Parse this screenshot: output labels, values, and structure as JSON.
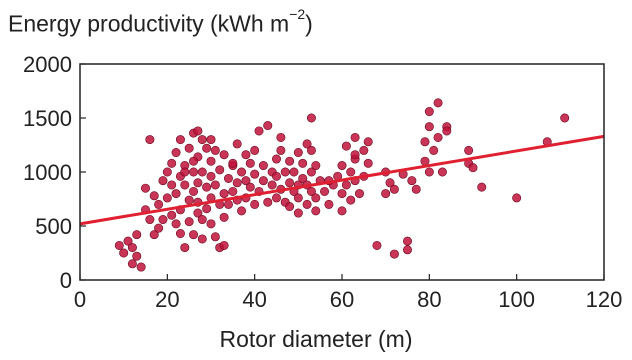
{
  "chart_data": {
    "type": "scatter",
    "title": "",
    "ylabel": {
      "text": "Energy productivity (kWh m",
      "sup": "−2",
      "close": ")"
    },
    "xlabel": "Rotor diameter (m)",
    "xlim": [
      0,
      120
    ],
    "ylim": [
      0,
      2000
    ],
    "xticks": [
      0,
      20,
      40,
      60,
      80,
      100,
      120
    ],
    "yticks": [
      0,
      500,
      1000,
      1500,
      2000
    ],
    "grid": false,
    "point_color": "#c0123a",
    "line_color": "#e02030",
    "trendline": {
      "x": [
        0,
        120
      ],
      "y": [
        520,
        1330
      ]
    },
    "series": [
      {
        "points": [
          [
            9,
            320
          ],
          [
            10,
            250
          ],
          [
            11,
            360
          ],
          [
            12,
            150
          ],
          [
            12,
            300
          ],
          [
            13,
            420
          ],
          [
            14,
            120
          ],
          [
            13,
            220
          ],
          [
            15,
            650
          ],
          [
            15,
            850
          ],
          [
            16,
            1300
          ],
          [
            16,
            560
          ],
          [
            17,
            420
          ],
          [
            17,
            780
          ],
          [
            18,
            700
          ],
          [
            18,
            480
          ],
          [
            19,
            920
          ],
          [
            19,
            560
          ],
          [
            20,
            1000
          ],
          [
            20,
            760
          ],
          [
            21,
            600
          ],
          [
            21,
            1080
          ],
          [
            21,
            880
          ],
          [
            22,
            520
          ],
          [
            22,
            800
          ],
          [
            22,
            1180
          ],
          [
            23,
            960
          ],
          [
            23,
            650
          ],
          [
            23,
            430
          ],
          [
            24,
            880
          ],
          [
            24,
            1060
          ],
          [
            24,
            300
          ],
          [
            25,
            740
          ],
          [
            25,
            1220
          ],
          [
            25,
            540
          ],
          [
            26,
            1000
          ],
          [
            26,
            1360
          ],
          [
            26,
            820
          ],
          [
            26,
            420
          ],
          [
            27,
            620
          ],
          [
            27,
            1140
          ],
          [
            27,
            900
          ],
          [
            27,
            720
          ],
          [
            28,
            380
          ],
          [
            28,
            1000
          ],
          [
            28,
            1300
          ],
          [
            28,
            560
          ],
          [
            29,
            860
          ],
          [
            29,
            1220
          ],
          [
            29,
            660
          ],
          [
            30,
            960
          ],
          [
            30,
            1100
          ],
          [
            30,
            760
          ],
          [
            30,
            520
          ],
          [
            31,
            1200
          ],
          [
            31,
            880
          ],
          [
            31,
            400
          ],
          [
            32,
            700
          ],
          [
            32,
            1020
          ],
          [
            32,
            300
          ],
          [
            33,
            800
          ],
          [
            33,
            1160
          ],
          [
            33,
            580
          ],
          [
            34,
            940
          ],
          [
            34,
            700
          ],
          [
            35,
            820
          ],
          [
            35,
            1060
          ],
          [
            36,
            1260
          ],
          [
            36,
            900
          ],
          [
            36,
            740
          ],
          [
            37,
            640
          ],
          [
            37,
            1000
          ],
          [
            38,
            760
          ],
          [
            38,
            1160
          ],
          [
            38,
            920
          ],
          [
            39,
            860
          ],
          [
            39,
            1080
          ],
          [
            40,
            700
          ],
          [
            40,
            980
          ],
          [
            40,
            1200
          ],
          [
            41,
            1380
          ],
          [
            41,
            820
          ],
          [
            42,
            920
          ],
          [
            42,
            1060
          ],
          [
            43,
            720
          ],
          [
            43,
            1430
          ],
          [
            44,
            880
          ],
          [
            44,
            1000
          ],
          [
            45,
            760
          ],
          [
            45,
            1120
          ],
          [
            45,
            960
          ],
          [
            46,
            840
          ],
          [
            46,
            1200
          ],
          [
            47,
            1000
          ],
          [
            47,
            720
          ],
          [
            48,
            900
          ],
          [
            48,
            1100
          ],
          [
            48,
            680
          ],
          [
            49,
            820
          ],
          [
            49,
            1000
          ],
          [
            50,
            1180
          ],
          [
            50,
            760
          ],
          [
            50,
            620
          ],
          [
            51,
            940
          ],
          [
            51,
            1080
          ],
          [
            52,
            880
          ],
          [
            52,
            1260
          ],
          [
            52,
            700
          ],
          [
            53,
            1000
          ],
          [
            53,
            820
          ],
          [
            53,
            1200
          ],
          [
            54,
            760
          ],
          [
            54,
            1060
          ],
          [
            54,
            640
          ],
          [
            55,
            920
          ],
          [
            56,
            820
          ],
          [
            57,
            700
          ],
          [
            58,
            880
          ],
          [
            59,
            960
          ],
          [
            60,
            1060
          ],
          [
            60,
            800
          ],
          [
            60,
            640
          ],
          [
            61,
            1240
          ],
          [
            61,
            880
          ],
          [
            62,
            740
          ],
          [
            62,
            1000
          ],
          [
            63,
            920
          ],
          [
            63,
            1120
          ],
          [
            64,
            800
          ],
          [
            65,
            1200
          ],
          [
            65,
            960
          ],
          [
            66,
            1280
          ],
          [
            66,
            1080
          ],
          [
            68,
            320
          ],
          [
            70,
            800
          ],
          [
            70,
            1000
          ],
          [
            71,
            900
          ],
          [
            72,
            240
          ],
          [
            72,
            840
          ],
          [
            74,
            980
          ],
          [
            75,
            280
          ],
          [
            75,
            360
          ],
          [
            76,
            920
          ],
          [
            77,
            840
          ],
          [
            79,
            1100
          ],
          [
            79,
            1280
          ],
          [
            80,
            1420
          ],
          [
            80,
            1000
          ],
          [
            80,
            1560
          ],
          [
            81,
            1200
          ],
          [
            82,
            1640
          ],
          [
            82,
            1320
          ],
          [
            83,
            1000
          ],
          [
            84,
            1420
          ],
          [
            84,
            1380
          ],
          [
            89,
            1200
          ],
          [
            89,
            1080
          ],
          [
            90,
            1040
          ],
          [
            92,
            860
          ],
          [
            100,
            760
          ],
          [
            107,
            1280
          ],
          [
            111,
            1500
          ],
          [
            53,
            1500
          ],
          [
            30,
            1300
          ],
          [
            27,
            1380
          ],
          [
            46,
            1320
          ],
          [
            50,
            880
          ],
          [
            57,
            920
          ],
          [
            63,
            1320
          ],
          [
            63,
            1160
          ],
          [
            33,
            320
          ],
          [
            35,
            1080
          ],
          [
            26,
            1100
          ],
          [
            24,
            1000
          ],
          [
            23,
            1300
          ]
        ]
      }
    ]
  }
}
